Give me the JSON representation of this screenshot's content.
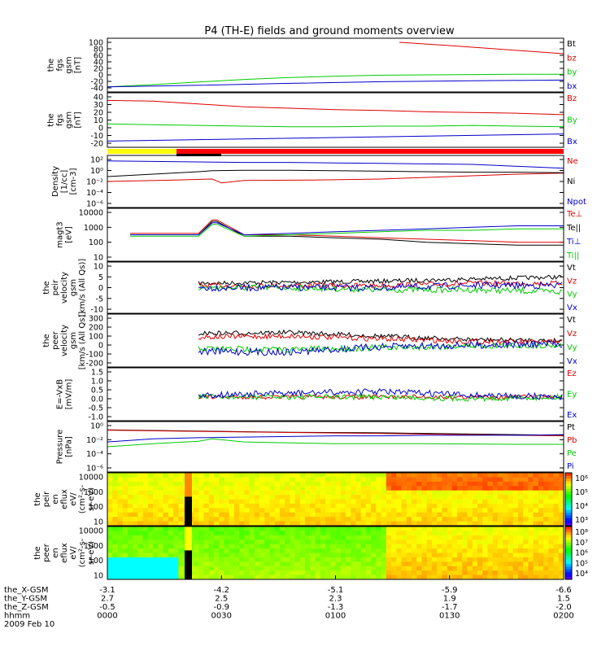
{
  "title": "P4 (TH-E) fields and ground moments overview",
  "chart_data": {
    "type": "line",
    "xlabel": "hhmm",
    "date": "2009 Feb 10",
    "x_ticks": [
      "0000",
      "0030",
      "0100",
      "0130",
      "0200"
    ],
    "x_range": [
      "0000",
      "0200"
    ],
    "ephemeris": [
      {
        "name": "the_X-GSM",
        "values": [
          "-3.1",
          "-4.2",
          "-5.1",
          "-5.9",
          "-6.6"
        ]
      },
      {
        "name": "the_Y-GSM",
        "values": [
          "2.7",
          "2.5",
          "2.3",
          "1.9",
          "1.5"
        ]
      },
      {
        "name": "the_Z-GSM",
        "values": [
          "-0.5",
          "-0.9",
          "-1.3",
          "-1.7",
          "-2.0"
        ]
      }
    ],
    "panels": [
      {
        "id": "fgs1",
        "ylabel": [
          "the",
          "fgs",
          "gsm",
          "[nT]"
        ],
        "ylim": [
          -40,
          100
        ],
        "yscale": "linear",
        "ticks": [
          "100",
          "80",
          "60",
          "40",
          "20",
          "0",
          "-20",
          "-40"
        ],
        "series": [
          {
            "name": "Bt",
            "color": "#000000",
            "x": [
              0.27,
              0.35,
              0.45,
              0.55,
              0.65,
              0.75,
              0.85,
              0.95,
              1.0
            ],
            "y": [
              null,
              null,
              null,
              null,
              null,
              null,
              null,
              null,
              null
            ]
          },
          {
            "name": "bz",
            "color": "#dd0000",
            "x": [
              0.64,
              0.75,
              0.85,
              0.95,
              1.0
            ],
            "y": [
              100,
              90,
              80,
              70,
              65
            ]
          },
          {
            "name": "by",
            "color": "#00cc00",
            "x": [
              0.0,
              0.1,
              0.2,
              0.3,
              0.4,
              0.5,
              0.6,
              0.7,
              0.8,
              0.9,
              1.0
            ],
            "y": [
              -37,
              -30,
              -22,
              -14,
              -8,
              -4,
              -1,
              0,
              1,
              2,
              2
            ]
          },
          {
            "name": "bx",
            "color": "#0000cc",
            "x": [
              0.0,
              0.2,
              0.4,
              0.6,
              0.8,
              1.0
            ],
            "y": [
              -37,
              -32,
              -26,
              -21,
              -18,
              -16
            ]
          }
        ]
      },
      {
        "id": "fgs2",
        "ylabel": [
          "the",
          "fgs",
          "gsm",
          "[nT]"
        ],
        "ylim": [
          -25,
          40
        ],
        "yscale": "linear",
        "ticks": [
          "40",
          "30",
          "20",
          "10",
          "0",
          "-10",
          "-20"
        ],
        "series": [
          {
            "name": "Bz",
            "color": "#dd0000",
            "x": [
              0.0,
              0.1,
              0.2,
              0.3,
              0.4,
              0.5,
              0.6,
              0.7,
              0.8,
              0.9,
              1.0
            ],
            "y": [
              35,
              34,
              30,
              26,
              24,
              22,
              21,
              19,
              18,
              17,
              15
            ]
          },
          {
            "name": "By",
            "color": "#00cc00",
            "x": [
              0.0,
              0.1,
              0.2,
              0.3,
              0.4,
              0.5,
              0.6,
              0.7,
              0.8,
              0.9,
              1.0
            ],
            "y": [
              2,
              1,
              0,
              -1,
              -2,
              -2,
              -1,
              -1,
              0,
              -1,
              -2
            ]
          },
          {
            "name": "Bx",
            "color": "#0000cc",
            "x": [
              0.0,
              0.1,
              0.2,
              0.3,
              0.4,
              0.5,
              0.6,
              0.7,
              0.8,
              0.9,
              1.0
            ],
            "y": [
              -22,
              -21,
              -20,
              -19,
              -18,
              -17,
              -16,
              -15,
              -14,
              -13,
              -12
            ]
          }
        ]
      },
      {
        "id": "density",
        "ylabel": [
          "Density",
          "[1/cc]",
          "[cm-3]"
        ],
        "ylim": [
          -6,
          3
        ],
        "yscale": "log",
        "ticks": [
          "10²",
          "10⁰",
          "10⁻²",
          "10⁻⁴",
          "10⁻⁶"
        ],
        "series": [
          {
            "name": "Ne",
            "color": "#dd0000",
            "x": [
              0.0,
              0.15,
              0.23,
              0.25,
              0.3,
              0.45,
              0.6,
              0.75,
              0.9,
              1.0
            ],
            "y": [
              -1.5,
              -1.2,
              -1.0,
              -1.8,
              -1.3,
              -1.2,
              -1.0,
              -0.5,
              0.0,
              0.2
            ]
          },
          {
            "name": "Ni",
            "color": "#000000",
            "x": [
              0.0,
              0.1,
              0.2,
              0.23,
              0.3,
              0.4,
              0.5,
              0.6,
              0.7,
              0.8,
              0.9,
              1.0
            ],
            "y": [
              -0.5,
              0.0,
              0.5,
              0.7,
              0.8,
              0.8,
              0.7,
              0.6,
              0.5,
              0.4,
              0.4,
              0.3
            ]
          },
          {
            "name": "Npot",
            "color": "#0000cc",
            "x": [
              0.0,
              0.1,
              0.2,
              0.3,
              0.4,
              0.5,
              0.6,
              0.7,
              0.8,
              0.9,
              1.0
            ],
            "y": [
              2.7,
              2.6,
              2.5,
              2.4,
              2.4,
              2.3,
              2.2,
              2.1,
              2.0,
              1.6,
              1.2
            ]
          }
        ]
      },
      {
        "id": "temp",
        "ylabel": [
          "magt3",
          "[eV]"
        ],
        "ylim": [
          1,
          4
        ],
        "yscale": "log",
        "ticks": [
          "10000",
          "1000",
          "100",
          "10"
        ],
        "series": [
          {
            "name": "Te⊥",
            "color": "#dd0000",
            "x": [
              0.05,
              0.15,
              0.2,
              0.23,
              0.24,
              0.3,
              0.4,
              0.5,
              0.6,
              0.7,
              0.8,
              0.9,
              1.0
            ],
            "y": [
              2.6,
              2.6,
              2.6,
              3.5,
              3.5,
              2.5,
              2.5,
              2.4,
              2.3,
              2.2,
              2.1,
              2.0,
              2.0
            ]
          },
          {
            "name": "Te||",
            "color": "#000000",
            "x": [
              0.05,
              0.15,
              0.2,
              0.23,
              0.24,
              0.3,
              0.4,
              0.5,
              0.6,
              0.7,
              0.8,
              0.9,
              1.0
            ],
            "y": [
              2.5,
              2.5,
              2.5,
              3.4,
              3.4,
              2.4,
              2.4,
              2.3,
              2.2,
              2.0,
              1.9,
              1.8,
              1.8
            ]
          },
          {
            "name": "Ti⊥",
            "color": "#0000cc",
            "x": [
              0.05,
              0.15,
              0.2,
              0.23,
              0.24,
              0.3,
              0.4,
              0.5,
              0.6,
              0.7,
              0.8,
              0.9,
              1.0
            ],
            "y": [
              2.5,
              2.5,
              2.5,
              3.3,
              3.3,
              2.5,
              2.6,
              2.7,
              2.8,
              2.9,
              3.0,
              3.1,
              3.1
            ]
          },
          {
            "name": "Ti||",
            "color": "#00cc00",
            "x": [
              0.05,
              0.15,
              0.2,
              0.23,
              0.24,
              0.3,
              0.4,
              0.5,
              0.6,
              0.7,
              0.8,
              0.9,
              1.0
            ],
            "y": [
              2.4,
              2.4,
              2.4,
              3.2,
              3.2,
              2.4,
              2.5,
              2.6,
              2.7,
              2.8,
              2.8,
              2.9,
              2.9
            ]
          }
        ]
      },
      {
        "id": "peirv",
        "ylabel": [
          "the",
          "peir",
          "velocity",
          "gsm",
          "[km/s (All Qs)]"
        ],
        "ylim": [
          -10,
          10
        ],
        "yscale": "linear",
        "ticks": [
          "10",
          "5",
          "0",
          "-5",
          "-10"
        ],
        "noise": true,
        "series": [
          {
            "name": "Vt",
            "color": "#000000",
            "x": [
              0.2,
              0.4,
              0.6,
              0.8,
              1.0
            ],
            "y": [
              2,
              2.5,
              3,
              4,
              5
            ]
          },
          {
            "name": "Vz",
            "color": "#dd0000",
            "x": [
              0.2,
              0.4,
              0.6,
              0.8,
              1.0
            ],
            "y": [
              1,
              1,
              1,
              2,
              2
            ]
          },
          {
            "name": "Vy",
            "color": "#00cc00",
            "x": [
              0.2,
              0.4,
              0.6,
              0.8,
              1.0
            ],
            "y": [
              0,
              0,
              -1,
              -1,
              -2
            ]
          },
          {
            "name": "Vx",
            "color": "#0000cc",
            "x": [
              0.2,
              0.4,
              0.6,
              0.8,
              1.0
            ],
            "y": [
              0,
              0,
              0,
              1,
              1
            ]
          }
        ]
      },
      {
        "id": "peerv",
        "ylabel": [
          "the",
          "peer",
          "velocity",
          "gsm",
          "[km/s (All Qs)]"
        ],
        "ylim": [
          -200,
          300
        ],
        "yscale": "linear",
        "ticks": [
          "300",
          "200",
          "100",
          "0",
          "-100",
          "-200"
        ],
        "noise": true,
        "series": [
          {
            "name": "Vt",
            "color": "#000000",
            "x": [
              0.2,
              0.4,
              0.6,
              0.8,
              1.0
            ],
            "y": [
              130,
              140,
              100,
              60,
              50
            ]
          },
          {
            "name": "Vz",
            "color": "#dd0000",
            "x": [
              0.2,
              0.4,
              0.6,
              0.8,
              1.0
            ],
            "y": [
              90,
              100,
              70,
              40,
              30
            ]
          },
          {
            "name": "Vy",
            "color": "#00cc00",
            "x": [
              0.2,
              0.4,
              0.6,
              0.8,
              1.0
            ],
            "y": [
              -40,
              -50,
              -30,
              -10,
              0
            ]
          },
          {
            "name": "Vx",
            "color": "#0000cc",
            "x": [
              0.2,
              0.4,
              0.6,
              0.8,
              1.0
            ],
            "y": [
              -70,
              -80,
              -20,
              0,
              10
            ]
          }
        ]
      },
      {
        "id": "efield",
        "ylabel": [
          "E=-VxB",
          "[mV/m]"
        ],
        "ylim": [
          -1.0,
          1.5
        ],
        "yscale": "linear",
        "ticks": [
          "1.5",
          "1.0",
          "0.5",
          "0.0",
          "-0.5",
          "-1.0"
        ],
        "noise": true,
        "series": [
          {
            "name": "Ez",
            "color": "#dd0000",
            "x": [
              0.2,
              0.4,
              0.6,
              0.8,
              1.0
            ],
            "y": [
              0.1,
              0.1,
              0.1,
              0.1,
              0.1
            ]
          },
          {
            "name": "Ey",
            "color": "#00cc00",
            "x": [
              0.2,
              0.4,
              0.6,
              0.8,
              1.0
            ],
            "y": [
              0.1,
              0.1,
              0.1,
              0.0,
              0.1
            ]
          },
          {
            "name": "Ex",
            "color": "#0000cc",
            "x": [
              0.2,
              0.4,
              0.6,
              0.8,
              1.0
            ],
            "y": [
              0.2,
              0.3,
              0.4,
              0.2,
              0.1
            ]
          }
        ]
      },
      {
        "id": "pressure",
        "ylabel": [
          "Pressure",
          "[nPa]"
        ],
        "ylim": [
          -6,
          1
        ],
        "yscale": "log",
        "ticks": [
          "10⁰",
          "10⁻²",
          "10⁻⁴",
          "10⁻⁶"
        ],
        "series": [
          {
            "name": "Pt",
            "color": "#000000",
            "x": [
              0.0,
              0.2,
              0.4,
              0.6,
              0.8,
              1.0
            ],
            "y": [
              0.3,
              0.1,
              -0.1,
              -0.2,
              -0.4,
              -0.6
            ]
          },
          {
            "name": "Pb",
            "color": "#dd0000",
            "x": [
              0.0,
              0.2,
              0.4,
              0.6,
              0.8,
              1.0
            ],
            "y": [
              0.25,
              0.05,
              -0.15,
              -0.3,
              -0.5,
              -0.7
            ]
          },
          {
            "name": "Pe",
            "color": "#00cc00",
            "x": [
              0.0,
              0.1,
              0.2,
              0.23,
              0.3,
              0.5,
              0.7,
              0.9,
              1.0
            ],
            "y": [
              -2.5,
              -2.0,
              -1.6,
              -1.2,
              -1.7,
              -2.0,
              -2.0,
              -2.1,
              -2.1
            ]
          },
          {
            "name": "Pi",
            "color": "#0000cc",
            "x": [
              0.0,
              0.1,
              0.2,
              0.3,
              0.4,
              0.5,
              0.6,
              0.7,
              0.8,
              0.9,
              1.0
            ],
            "y": [
              -1.7,
              -1.2,
              -1.0,
              -0.9,
              -0.8,
              -0.7,
              -0.7,
              -0.6,
              -0.6,
              -0.6,
              -0.5
            ]
          }
        ]
      },
      {
        "id": "peir_spec",
        "type": "heatmap",
        "ylabel": [
          "the",
          "peir",
          "en",
          "eflux",
          "eV/",
          "(cm²-s-",
          "sr-eV)"
        ],
        "ticks": [
          "10000",
          "1000",
          "100",
          "10"
        ],
        "colorbar": [
          "10⁶",
          "10⁵",
          "10⁴",
          "10³"
        ]
      },
      {
        "id": "peer_spec",
        "type": "heatmap",
        "ylabel": [
          "the",
          "peer",
          "en",
          "eflux",
          "eV/",
          "(cm²-s-",
          "sr-eV)"
        ],
        "ticks": [
          "10000",
          "1000",
          "100",
          "10"
        ],
        "colorbar": [
          "10⁸",
          "10⁷",
          "10⁶",
          "10⁵",
          "10⁴"
        ]
      }
    ]
  }
}
